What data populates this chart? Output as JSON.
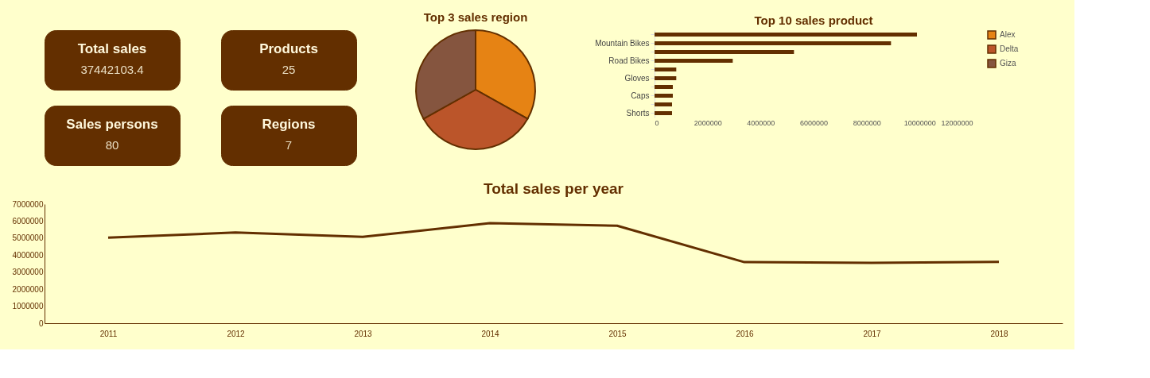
{
  "chart_data": [
    {
      "type": "other",
      "title": "Total sales",
      "annotations": [
        "37442103.4"
      ]
    },
    {
      "type": "other",
      "title": "Products",
      "annotations": [
        "25"
      ]
    },
    {
      "type": "other",
      "title": "Sales persons",
      "annotations": [
        "80"
      ]
    },
    {
      "type": "other",
      "title": "Regions",
      "annotations": [
        "7"
      ]
    },
    {
      "type": "pie",
      "title": "Top 3 sales region",
      "categories": [
        "Alex",
        "Delta",
        "Giza"
      ],
      "values": [
        33.1,
        33.8,
        33.1
      ],
      "colors": [
        "#e68314",
        "#bb552a",
        "#85553f"
      ],
      "legend": "right"
    },
    {
      "type": "bar",
      "title": "Top 10 sales product",
      "orientation": "horizontal",
      "categories": [
        null,
        "Mountain Bikes",
        null,
        "Road Bikes",
        null,
        "Gloves",
        null,
        "Caps",
        null,
        "Shorts"
      ],
      "values": [
        9900000,
        8920000,
        5260000,
        2950000,
        820000,
        820000,
        690000,
        690000,
        660000,
        660000
      ],
      "color": "#632f00",
      "xlim": [
        0,
        12000000
      ],
      "xticks": [
        0,
        2000000,
        4000000,
        6000000,
        8000000,
        10000000,
        12000000
      ]
    },
    {
      "type": "line",
      "title": "Total sales per year",
      "categories": [
        "2011",
        "2012",
        "2013",
        "2014",
        "2015",
        "2016",
        "2017",
        "2018"
      ],
      "values": [
        5030000,
        5330000,
        5070000,
        5880000,
        5730000,
        3590000,
        3550000,
        3610000
      ],
      "color": "#632f00",
      "ylim": [
        0,
        7000000
      ],
      "yticks": [
        0,
        1000000,
        2000000,
        3000000,
        4000000,
        5000000,
        6000000,
        7000000
      ]
    }
  ]
}
